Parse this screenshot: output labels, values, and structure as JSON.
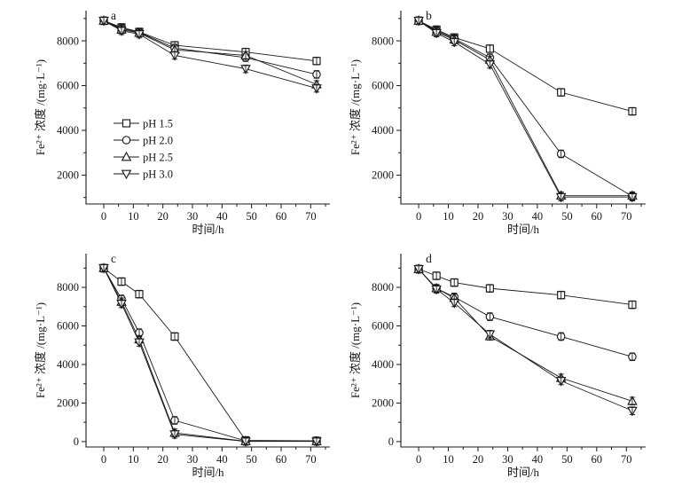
{
  "page": {
    "background": "#ffffff",
    "ink_color": "#1a1a1a"
  },
  "figure": {
    "xlabel": "时间/h",
    "ylabel": "Fe²⁺ 浓度 /(mg·L⁻¹)",
    "legend_items": [
      "pH 1.5",
      "pH 2.0",
      "pH 2.5",
      "pH 3.0"
    ],
    "legend_markers": [
      "square",
      "circle",
      "triangle-up",
      "triangle-down"
    ],
    "panel_labels": [
      "a",
      "b",
      "c",
      "d"
    ]
  },
  "chart_data": [
    {
      "type": "line",
      "panel_label": "a",
      "xlabel": "时间/h",
      "ylabel": "Fe²⁺ 浓度 /(mg·L⁻¹)",
      "x": [
        0,
        6,
        12,
        24,
        48,
        72
      ],
      "xlim": [
        -6,
        76.5
      ],
      "ylim": [
        710,
        9350
      ],
      "xticks": [
        0,
        10,
        20,
        30,
        40,
        50,
        60,
        70
      ],
      "yticks": [
        2000,
        4000,
        6000,
        8000
      ],
      "x_minor_step": 5,
      "y_minor_step": 1000,
      "grid": false,
      "legend": true,
      "legend_position": "center-left",
      "error_bar": 170,
      "series": [
        {
          "name": "pH 1.5",
          "marker": "square",
          "values": [
            8900,
            8600,
            8400,
            7800,
            7500,
            7100
          ]
        },
        {
          "name": "pH 2.0",
          "marker": "circle",
          "values": [
            8900,
            8550,
            8380,
            7680,
            7250,
            6500
          ]
        },
        {
          "name": "pH 2.5",
          "marker": "triangle-up",
          "values": [
            8900,
            8500,
            8350,
            7600,
            7350,
            6050
          ]
        },
        {
          "name": "pH 3.0",
          "marker": "triangle-down",
          "values": [
            8900,
            8450,
            8300,
            7350,
            6750,
            5880
          ]
        }
      ]
    },
    {
      "type": "line",
      "panel_label": "b",
      "xlabel": "时间/h",
      "ylabel": "Fe²⁺ 浓度 /(mg·L⁻¹)",
      "x": [
        0,
        6,
        12,
        24,
        48,
        72
      ],
      "xlim": [
        -6,
        76.5
      ],
      "ylim": [
        710,
        9350
      ],
      "xticks": [
        0,
        10,
        20,
        30,
        40,
        50,
        60,
        70
      ],
      "yticks": [
        2000,
        4000,
        6000,
        8000
      ],
      "x_minor_step": 5,
      "y_minor_step": 1000,
      "grid": false,
      "legend": false,
      "error_bar": 170,
      "series": [
        {
          "name": "pH 1.5",
          "marker": "square",
          "values": [
            8900,
            8500,
            8150,
            7650,
            5700,
            4850
          ]
        },
        {
          "name": "pH 2.0",
          "marker": "circle",
          "values": [
            8900,
            8450,
            8100,
            7250,
            2950,
            1050
          ]
        },
        {
          "name": "pH 2.5",
          "marker": "triangle-up",
          "values": [
            8900,
            8400,
            8050,
            7150,
            1080,
            1080
          ]
        },
        {
          "name": "pH 3.0",
          "marker": "triangle-down",
          "values": [
            8900,
            8350,
            7950,
            6950,
            1020,
            1020
          ]
        }
      ]
    },
    {
      "type": "line",
      "panel_label": "c",
      "xlabel": "时间/h",
      "ylabel": "Fe²⁺ 浓度 /(mg·L⁻¹)",
      "x": [
        0,
        6,
        12,
        24,
        48,
        72
      ],
      "xlim": [
        -6,
        76.5
      ],
      "ylim": [
        -280,
        9750
      ],
      "xticks": [
        0,
        10,
        20,
        30,
        40,
        50,
        60,
        70
      ],
      "yticks": [
        0,
        2000,
        4000,
        6000,
        8000
      ],
      "x_minor_step": 5,
      "y_minor_step": 1000,
      "grid": false,
      "legend": false,
      "error_bar": 200,
      "series": [
        {
          "name": "pH 1.5",
          "marker": "square",
          "values": [
            9000,
            8300,
            7650,
            5450,
            60,
            40
          ]
        },
        {
          "name": "pH 2.0",
          "marker": "circle",
          "values": [
            9000,
            7400,
            5650,
            1100,
            40,
            30
          ]
        },
        {
          "name": "pH 2.5",
          "marker": "triangle-up",
          "values": [
            9000,
            7250,
            5300,
            450,
            20,
            20
          ]
        },
        {
          "name": "pH 3.0",
          "marker": "triangle-down",
          "values": [
            9000,
            7150,
            5150,
            380,
            10,
            10
          ]
        }
      ]
    },
    {
      "type": "line",
      "panel_label": "d",
      "xlabel": "时间/h",
      "ylabel": "Fe²⁺ 浓度 /(mg·L⁻¹)",
      "x": [
        0,
        6,
        12,
        24,
        48,
        72
      ],
      "xlim": [
        -6,
        76.5
      ],
      "ylim": [
        -280,
        9750
      ],
      "xticks": [
        0,
        10,
        20,
        30,
        40,
        50,
        60,
        70
      ],
      "yticks": [
        0,
        2000,
        4000,
        6000,
        8000
      ],
      "x_minor_step": 5,
      "y_minor_step": 1000,
      "grid": false,
      "legend": false,
      "error_bar": 200,
      "series": [
        {
          "name": "pH 1.5",
          "marker": "square",
          "values": [
            8950,
            8600,
            8250,
            7950,
            7600,
            7100
          ]
        },
        {
          "name": "pH 2.0",
          "marker": "circle",
          "values": [
            8950,
            7950,
            7500,
            6480,
            5450,
            4400
          ]
        },
        {
          "name": "pH 2.5",
          "marker": "triangle-up",
          "values": [
            8950,
            7950,
            7450,
            5460,
            3300,
            2100
          ]
        },
        {
          "name": "pH 3.0",
          "marker": "triangle-down",
          "values": [
            8950,
            7900,
            7200,
            5570,
            3150,
            1600
          ]
        }
      ]
    }
  ]
}
